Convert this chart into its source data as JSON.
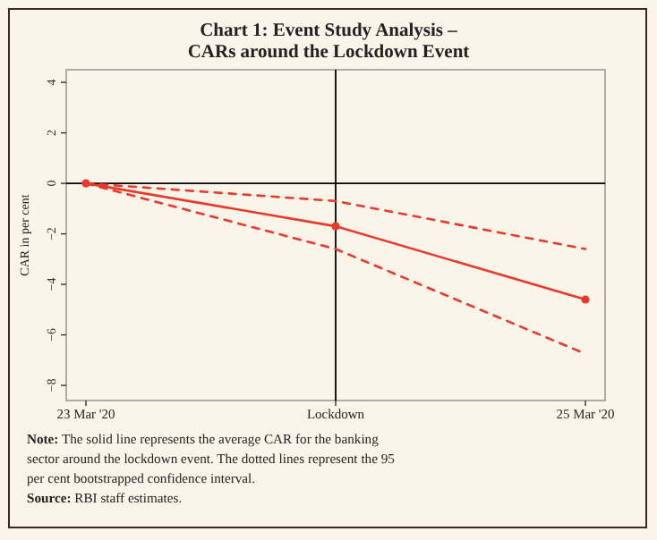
{
  "chart_data": {
    "type": "line",
    "title": "Chart 1: Event Study Analysis –\nCARs around the Lockdown Event",
    "ylabel": "CAR in per cent",
    "categories": [
      "23 Mar '20",
      "Lockdown",
      "25 Mar '20"
    ],
    "series": [
      {
        "color": "#e8392e",
        "values": [
          0,
          -1.7,
          -4.6
        ],
        "marker": "circle",
        "line_style": "solid"
      },
      {
        "color": "#e8392e",
        "values": [
          0,
          -0.7,
          -2.6
        ],
        "marker": "none",
        "line_style": "dashed"
      },
      {
        "color": "#e8392e",
        "values": [
          0,
          -2.6,
          -6.75
        ],
        "marker": "none",
        "line_style": "dashed"
      }
    ],
    "ylim": [
      -8.6,
      4.5
    ],
    "yticks": [
      -8,
      -6,
      -4,
      -2,
      0,
      2,
      4
    ],
    "grid": false,
    "ref_lines": [
      {
        "axis": "y",
        "value": 0,
        "color": "#000000"
      },
      {
        "axis": "x",
        "value": "Lockdown",
        "color": "#000000"
      }
    ],
    "annotations": [
      "Note: The solid line represents the average CAR for the banking sector around the lockdown event. The dotted lines represent the 95 per cent bootstrapped confidence interval.",
      "Source: RBI staff estimates."
    ]
  }
}
